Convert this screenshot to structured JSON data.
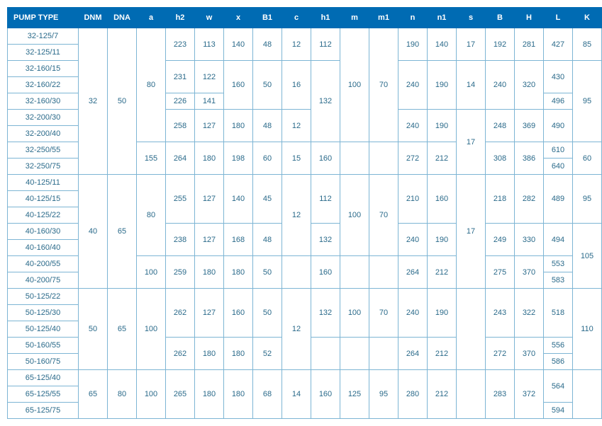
{
  "headers": [
    "PUMP TYPE",
    "DNM",
    "DNA",
    "a",
    "h2",
    "w",
    "x",
    "B1",
    "c",
    "h1",
    "m",
    "m1",
    "n",
    "n1",
    "s",
    "B",
    "H",
    "L",
    "K"
  ],
  "pump_types": [
    "32-125/7",
    "32-125/11",
    "32-160/15",
    "32-160/22",
    "32-160/30",
    "32-200/30",
    "32-200/40",
    "32-250/55",
    "32-250/75",
    "40-125/11",
    "40-125/15",
    "40-125/22",
    "40-160/30",
    "40-160/40",
    "40-200/55",
    "40-200/75",
    "50-125/22",
    "50-125/30",
    "50-125/40",
    "50-160/55",
    "50-160/75",
    "65-125/40",
    "65-125/55",
    "65-125/75"
  ],
  "v": {
    "dnm_32": "32",
    "dnm_40": "40",
    "dnm_50": "50",
    "dnm_65": "65",
    "dna_50": "50",
    "dna_65": "65",
    "dna_80": "80",
    "a_80": "80",
    "a_155": "155",
    "a_100": "100",
    "h2_223": "223",
    "h2_231": "231",
    "h2_226": "226",
    "h2_258": "258",
    "h2_264": "264",
    "h2_255": "255",
    "h2_238": "238",
    "h2_259": "259",
    "h2_262": "262",
    "h2_265": "265",
    "w_113": "113",
    "w_122": "122",
    "w_141": "141",
    "w_127": "127",
    "w_180": "180",
    "x_140": "140",
    "x_160": "160",
    "x_180": "180",
    "x_198": "198",
    "x_168": "168",
    "b1_48": "48",
    "b1_50": "50",
    "b1_60": "60",
    "b1_45": "45",
    "b1_52": "52",
    "b1_68": "68",
    "c_12": "12",
    "c_16": "16",
    "c_15": "15",
    "c_14": "14",
    "h1_112": "112",
    "h1_132": "132",
    "h1_160": "160",
    "m_100": "100",
    "m_125": "125",
    "m1_70": "70",
    "m1_95": "95",
    "n_190": "190",
    "n_240": "240",
    "n_272": "272",
    "n_210": "210",
    "n_264": "264",
    "n_280": "280",
    "n1_140": "140",
    "n1_190": "190",
    "n1_212": "212",
    "n1_160": "160",
    "s_17": "17",
    "s_14": "14",
    "b_192": "192",
    "b_240": "240",
    "b_248": "248",
    "b_308": "308",
    "b_218": "218",
    "b_249": "249",
    "b_275": "275",
    "b_243": "243",
    "b_272": "272",
    "b_283": "283",
    "hh_281": "281",
    "hh_320": "320",
    "hh_369": "369",
    "hh_386": "386",
    "hh_282": "282",
    "hh_330": "330",
    "hh_370": "370",
    "hh_322": "322",
    "hh_372": "372",
    "l_427": "427",
    "l_430": "430",
    "l_496": "496",
    "l_490": "490",
    "l_610": "610",
    "l_640": "640",
    "l_489": "489",
    "l_494": "494",
    "l_553": "553",
    "l_583": "583",
    "l_518": "518",
    "l_556": "556",
    "l_586": "586",
    "l_564": "564",
    "l_594": "594",
    "k_85": "85",
    "k_95": "95",
    "k_60": "60",
    "k_105": "105",
    "k_110": "110"
  }
}
